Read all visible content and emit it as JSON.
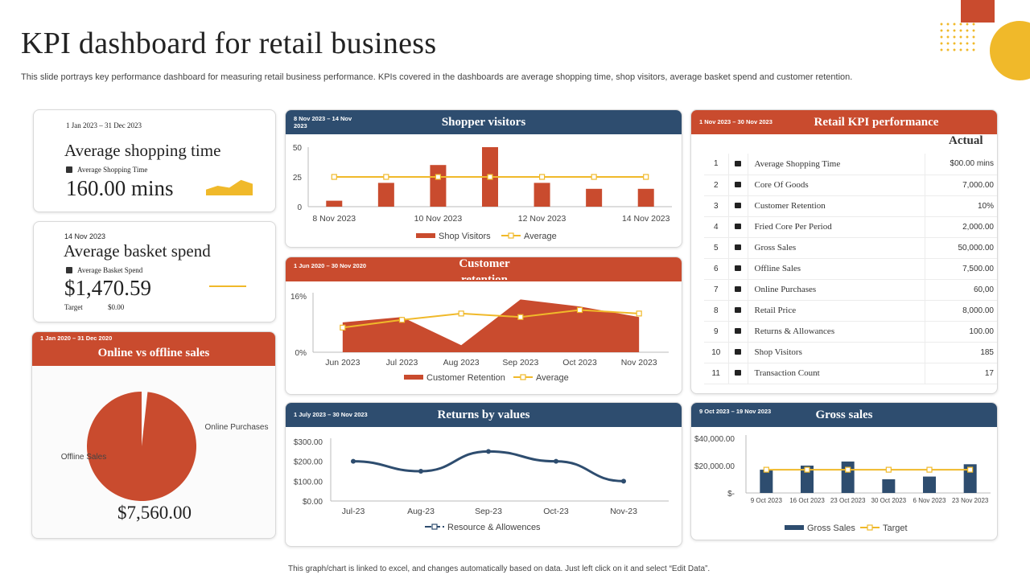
{
  "page": {
    "title": "KPI dashboard for retail business",
    "subtitle": "This slide portrays key performance dashboard for measuring retail business performance. KPIs covered in the dashboards are average shopping time, shop visitors, average basket spend and customer retention.",
    "footer": "This graph/chart is linked to excel, and changes automatically based on data. Just left click on it and select “Edit Data”."
  },
  "colors": {
    "red": "#c94b2e",
    "blue": "#2e4d6f",
    "yellow": "#f0b92a",
    "navy_line": "#2e4d6f"
  },
  "kpi_shopping_time": {
    "date": "1 Jan 2023 – 31 Dec 2023",
    "name": "Average shopping time",
    "sub_label": "Average Shopping Time",
    "value": "160.00 mins"
  },
  "kpi_basket": {
    "date": "14 Nov 2023",
    "name": "Average basket spend",
    "sub_label": "Average Basket Spend",
    "value": "$1,470.59",
    "target_label": "Target",
    "target_value": "$0.00"
  },
  "online_offline": {
    "date": "1 Jan 2020 – 31 Dec 2020",
    "title": "Online vs offline sales",
    "total": "$7,560.00"
  },
  "shopper_visitors": {
    "date": "8 Nov 2023 – 14 Nov 2023",
    "title": "Shopper visitors"
  },
  "customer_retention": {
    "date": "1 Jun 2020 – 30 Nov 2020",
    "title": "Customer retention"
  },
  "returns": {
    "date": "1 July 2023 – 30 Nov 2023",
    "title": "Returns by values"
  },
  "retail_kpi": {
    "date": "1 Nov 2023 – 30 Nov 2023",
    "title": "Retail KPI performance",
    "column_header": "Actual",
    "rows": [
      {
        "n": "1",
        "name": "Average Shopping Time",
        "value": "$00.00 mins"
      },
      {
        "n": "2",
        "name": "Core Of Goods",
        "value": "7,000.00"
      },
      {
        "n": "3",
        "name": "Customer Retention",
        "value": "10%"
      },
      {
        "n": "4",
        "name": "Fried Core Per Period",
        "value": "2,000.00"
      },
      {
        "n": "5",
        "name": "Gross Sales",
        "value": "50,000.00"
      },
      {
        "n": "6",
        "name": "Offline Sales",
        "value": "7,500.00"
      },
      {
        "n": "7",
        "name": "Online Purchases",
        "value": "60,00"
      },
      {
        "n": "8",
        "name": "Retail Price",
        "value": "8,000.00"
      },
      {
        "n": "9",
        "name": "Returns & Allowances",
        "value": "100.00"
      },
      {
        "n": "10",
        "name": "Shop Visitors",
        "value": "185"
      },
      {
        "n": "11",
        "name": "Transaction Count",
        "value": "17"
      }
    ]
  },
  "gross_sales": {
    "date": "9 Oct 2023 – 19 Nov 2023",
    "title": "Gross sales"
  },
  "chart_data": [
    {
      "id": "shopper_visitors",
      "type": "bar",
      "title": "Shopper visitors",
      "x": [
        "2023-11-08",
        "2023-11-09",
        "2023-11-10",
        "2023-11-11",
        "2023-11-12",
        "2023-11-13",
        "2023-11-14"
      ],
      "tick_labels": [
        "8 Nov 2023",
        "10 Nov 2023",
        "12 Nov 2023",
        "14 Nov 2023"
      ],
      "series": [
        {
          "name": "Shop Visitors",
          "kind": "bar",
          "values": [
            5,
            20,
            35,
            50,
            20,
            15,
            15
          ]
        },
        {
          "name": "Average",
          "kind": "line",
          "values": [
            25,
            25,
            25,
            25,
            25,
            25,
            25
          ]
        }
      ],
      "yticks": [
        "0",
        "25",
        "50"
      ],
      "ylim": [
        0,
        50
      ],
      "legend": "bottom"
    },
    {
      "id": "customer_retention",
      "type": "area",
      "title": "Customer retention",
      "categories": [
        "Jun 2023",
        "Jul 2023",
        "Aug 2023",
        "Sep 2023",
        "Oct 2023",
        "Nov 2023"
      ],
      "series": [
        {
          "name": "Customer Retention",
          "kind": "area",
          "values": [
            8.5,
            10,
            2,
            15,
            13,
            10
          ]
        },
        {
          "name": "Average",
          "kind": "line",
          "values": [
            7,
            9.2,
            11,
            10,
            12,
            11
          ]
        }
      ],
      "yticks": [
        "0%",
        "16%"
      ],
      "ylim": [
        0,
        16
      ],
      "legend": "bottom"
    },
    {
      "id": "online_offline",
      "type": "pie",
      "title": "Online vs offline sales",
      "categories": [
        "Offline Sales",
        "Online Purchases"
      ],
      "values": [
        7500,
        60
      ]
    },
    {
      "id": "returns",
      "type": "line",
      "title": "Returns by values",
      "categories": [
        "Jul-23",
        "Aug-23",
        "Sep-23",
        "Oct-23",
        "Nov-23"
      ],
      "series": [
        {
          "name": "Resource & Allowences",
          "values": [
            200,
            150,
            250,
            200,
            100
          ]
        }
      ],
      "yticks": [
        "$0.00",
        "$100.00",
        "$200.00",
        "$300.00"
      ],
      "ylim": [
        0,
        300
      ],
      "legend": "bottom"
    },
    {
      "id": "gross_sales",
      "type": "bar",
      "title": "Gross sales",
      "categories": [
        "9 Oct 2023",
        "16 Oct 2023",
        "23 Oct 2023",
        "30 Oct 2023",
        "6 Nov 2023",
        "23 Nov 2023"
      ],
      "series": [
        {
          "name": "Gross Sales",
          "kind": "bar",
          "values": [
            17000,
            20000,
            23000,
            10000,
            12000,
            21000
          ]
        },
        {
          "name": "Target",
          "kind": "line",
          "values": [
            17000,
            17000,
            17000,
            17000,
            17000,
            17000
          ]
        }
      ],
      "yticks": [
        "$-",
        "$20,000.00",
        "$40,000.00"
      ],
      "ylim": [
        0,
        40000
      ],
      "legend": "bottom"
    },
    {
      "id": "shopping_time_spark",
      "type": "area",
      "values": [
        3,
        5,
        4,
        8,
        6
      ]
    }
  ]
}
